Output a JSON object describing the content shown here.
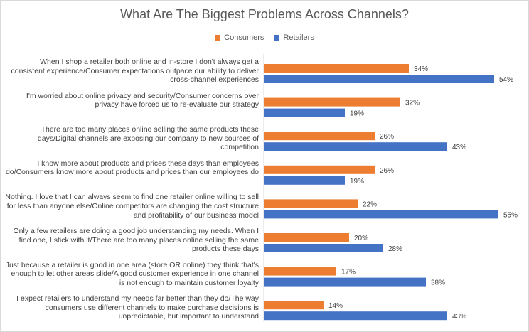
{
  "chart_data": {
    "type": "bar",
    "orientation": "horizontal",
    "title": "What Are The Biggest Problems Across Channels?",
    "legend_position": "top",
    "grid": false,
    "xlim": [
      0,
      60
    ],
    "value_format": "percent",
    "categories": [
      "When I shop a retailer both online and in-store I don't always get a consistent experience/Consumer expectations outpace our ability to deliver cross-channel experiences",
      "I'm worried about online privacy and security/Consumer concerns over privacy have forced us to re-evaluate our strategy",
      "There are too many places online selling the same products these days/Digital channels are exposing our company to new sources of competition",
      "I know more about products and prices these days than employees do/Consumers know more about products and prices than our employees do",
      "Nothing. I love that I can always seem to find one retailer online willing to sell for less than anyone else/Online competitors are changing the cost structure and profitability of our business model",
      "Only a few retailers are doing a good job understanding my needs. When I find one, I stick with it/There are too many places online selling the same products these days",
      "Just because a retailer is good in one area (store OR online) they think that's enough to let other areas slide/A good customer experience in one channel is not enough to maintain customer loyalty",
      "I expect retailers to understand my needs far better than they do/The way consumers use different channels to make purchase decisions is unpredictable, but important to understand"
    ],
    "series": [
      {
        "name": "Consumers",
        "color": "#ed7d31",
        "values": [
          34,
          32,
          26,
          26,
          22,
          20,
          17,
          14
        ]
      },
      {
        "name": "Retailers",
        "color": "#4472c4",
        "values": [
          54,
          19,
          43,
          19,
          55,
          28,
          38,
          43
        ]
      }
    ]
  }
}
